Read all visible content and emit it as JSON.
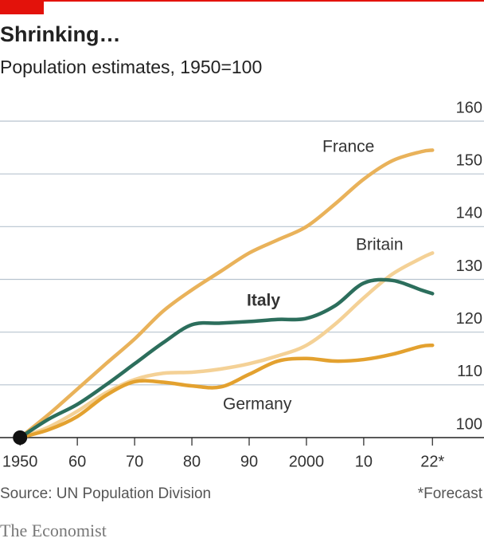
{
  "chart_data": {
    "type": "line",
    "title": "Shrinking…",
    "subtitle": "Population estimates, 1950=100",
    "source": "Source: UN Population Division",
    "note": "*Forecast",
    "brand": "The Economist",
    "x": [
      1950,
      1955,
      1960,
      1965,
      1970,
      1975,
      1980,
      1985,
      1990,
      1995,
      2000,
      2005,
      2010,
      2015,
      2020,
      2022
    ],
    "series": [
      {
        "name": "France",
        "color": "#e9b25a",
        "values": [
          100,
          104.4,
          109.2,
          114,
          118.7,
          124,
          128,
          131.5,
          135,
          137.5,
          140,
          144.3,
          149,
          152.5,
          154.2,
          154.5
        ]
      },
      {
        "name": "Britain",
        "color": "#f4d196",
        "values": [
          100,
          102,
          105,
          108.5,
          111,
          112.2,
          112.4,
          113,
          114,
          115.5,
          117.5,
          121.5,
          126.5,
          131,
          134,
          135
        ]
      },
      {
        "name": "Italy",
        "color": "#2c6e5c",
        "values": [
          100,
          103.5,
          106.3,
          110,
          114,
          118,
          121.4,
          121.7,
          122,
          122.4,
          122.6,
          125,
          129.3,
          129.8,
          128,
          127.3
        ]
      },
      {
        "name": "Germany",
        "color": "#e3a12f",
        "values": [
          100,
          101.5,
          104,
          108,
          110.6,
          110.5,
          109.8,
          109.6,
          112,
          114.5,
          115,
          114.5,
          114.8,
          115.8,
          117.3,
          117.5
        ]
      }
    ],
    "xlim": [
      1946.5,
      2031
    ],
    "xticks": [
      {
        "value": 1950,
        "label": "1950"
      },
      {
        "value": 1960,
        "label": "60"
      },
      {
        "value": 1970,
        "label": "70"
      },
      {
        "value": 1980,
        "label": "80"
      },
      {
        "value": 1990,
        "label": "90"
      },
      {
        "value": 2000,
        "label": "2000"
      },
      {
        "value": 2010,
        "label": "10"
      },
      {
        "value": 2022,
        "label": "22*"
      }
    ],
    "ylim": [
      100,
      160
    ],
    "yticks": [
      100,
      110,
      120,
      130,
      140,
      150,
      160
    ],
    "grid": true
  }
}
